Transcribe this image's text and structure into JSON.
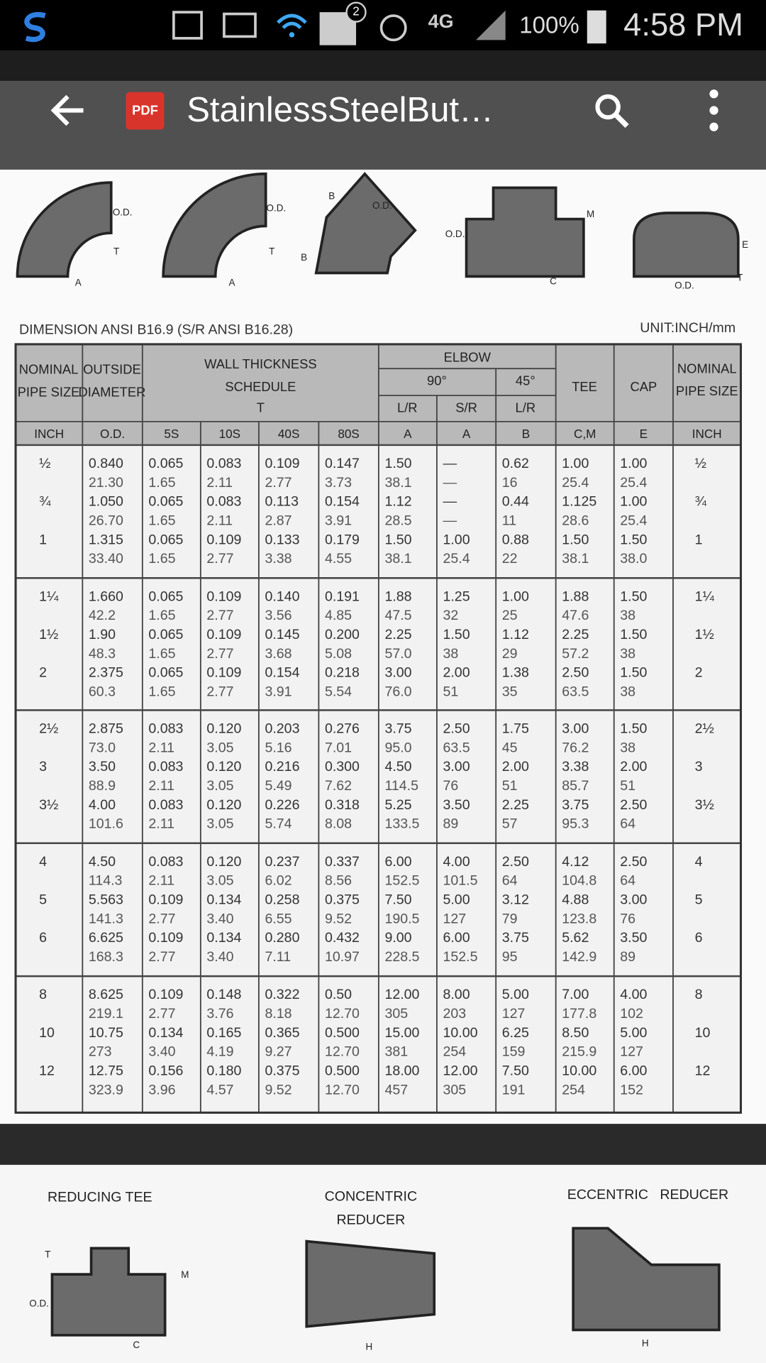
{
  "status_bar": {
    "notification_count": "2",
    "network": "4G",
    "battery": "100%",
    "time": "4:58 PM"
  },
  "toolbar": {
    "badge": "PDF",
    "title": "StainlessSteelBut…"
  },
  "top_figure_labels": [
    "O.D.",
    "T",
    "A",
    "O.D.",
    "T",
    "A",
    "B",
    "B",
    "O.D.",
    "O.D.",
    "M",
    "C",
    "E",
    "O.D.",
    "T"
  ],
  "document": {
    "caption": "DIMENSION ANSI B16.9 (S/R ANSI B16.28)",
    "unit": "UNIT:INCH/mm"
  },
  "table": {
    "header": {
      "nominal_left": [
        "NOMINAL",
        "PIPE SIZE"
      ],
      "outside": [
        "OUTSIDE",
        "DIAMETER"
      ],
      "wall": [
        "WALL THICKNESS",
        "SCHEDULE"
      ],
      "wall_sub": "T",
      "elbow": "ELBOW",
      "deg90": "90°",
      "deg45": "45°",
      "lr_90": "L/R",
      "sr_90": "S/R",
      "lr_45": "L/R",
      "tee": "TEE",
      "cap": "CAP",
      "nominal_right": [
        "NOMINAL",
        "PIPE SIZE"
      ],
      "units": [
        "INCH",
        "O.D.",
        "5S",
        "10S",
        "40S",
        "80S",
        "A",
        "A",
        "B",
        "C,M",
        "E",
        "INCH"
      ]
    },
    "groups": [
      [
        {
          "size": "½",
          "inch": [
            "0.840",
            "0.065",
            "0.083",
            "0.109",
            "0.147",
            "1.50",
            "—",
            "0.62",
            "1.00",
            "1.00"
          ],
          "mm": [
            "21.30",
            "1.65",
            "2.11",
            "2.77",
            "3.73",
            "38.1",
            "—",
            "16",
            "25.4",
            "25.4"
          ]
        },
        {
          "size": "¾",
          "inch": [
            "1.050",
            "0.065",
            "0.083",
            "0.113",
            "0.154",
            "1.12",
            "—",
            "0.44",
            "1.125",
            "1.00"
          ],
          "mm": [
            "26.70",
            "1.65",
            "2.11",
            "2.87",
            "3.91",
            "28.5",
            "—",
            "11",
            "28.6",
            "25.4"
          ]
        },
        {
          "size": "1",
          "inch": [
            "1.315",
            "0.065",
            "0.109",
            "0.133",
            "0.179",
            "1.50",
            "1.00",
            "0.88",
            "1.50",
            "1.50"
          ],
          "mm": [
            "33.40",
            "1.65",
            "2.77",
            "3.38",
            "4.55",
            "38.1",
            "25.4",
            "22",
            "38.1",
            "38.0"
          ]
        }
      ],
      [
        {
          "size": "1¼",
          "inch": [
            "1.660",
            "0.065",
            "0.109",
            "0.140",
            "0.191",
            "1.88",
            "1.25",
            "1.00",
            "1.88",
            "1.50"
          ],
          "mm": [
            "42.2",
            "1.65",
            "2.77",
            "3.56",
            "4.85",
            "47.5",
            "32",
            "25",
            "47.6",
            "38"
          ]
        },
        {
          "size": "1½",
          "inch": [
            "1.90",
            "0.065",
            "0.109",
            "0.145",
            "0.200",
            "2.25",
            "1.50",
            "1.12",
            "2.25",
            "1.50"
          ],
          "mm": [
            "48.3",
            "1.65",
            "2.77",
            "3.68",
            "5.08",
            "57.0",
            "38",
            "29",
            "57.2",
            "38"
          ]
        },
        {
          "size": "2",
          "inch": [
            "2.375",
            "0.065",
            "0.109",
            "0.154",
            "0.218",
            "3.00",
            "2.00",
            "1.38",
            "2.50",
            "1.50"
          ],
          "mm": [
            "60.3",
            "1.65",
            "2.77",
            "3.91",
            "5.54",
            "76.0",
            "51",
            "35",
            "63.5",
            "38"
          ]
        }
      ],
      [
        {
          "size": "2½",
          "inch": [
            "2.875",
            "0.083",
            "0.120",
            "0.203",
            "0.276",
            "3.75",
            "2.50",
            "1.75",
            "3.00",
            "1.50"
          ],
          "mm": [
            "73.0",
            "2.11",
            "3.05",
            "5.16",
            "7.01",
            "95.0",
            "63.5",
            "45",
            "76.2",
            "38"
          ]
        },
        {
          "size": "3",
          "inch": [
            "3.50",
            "0.083",
            "0.120",
            "0.216",
            "0.300",
            "4.50",
            "3.00",
            "2.00",
            "3.38",
            "2.00"
          ],
          "mm": [
            "88.9",
            "2.11",
            "3.05",
            "5.49",
            "7.62",
            "114.5",
            "76",
            "51",
            "85.7",
            "51"
          ]
        },
        {
          "size": "3½",
          "inch": [
            "4.00",
            "0.083",
            "0.120",
            "0.226",
            "0.318",
            "5.25",
            "3.50",
            "2.25",
            "3.75",
            "2.50"
          ],
          "mm": [
            "101.6",
            "2.11",
            "3.05",
            "5.74",
            "8.08",
            "133.5",
            "89",
            "57",
            "95.3",
            "64"
          ]
        }
      ],
      [
        {
          "size": "4",
          "inch": [
            "4.50",
            "0.083",
            "0.120",
            "0.237",
            "0.337",
            "6.00",
            "4.00",
            "2.50",
            "4.12",
            "2.50"
          ],
          "mm": [
            "114.3",
            "2.11",
            "3.05",
            "6.02",
            "8.56",
            "152.5",
            "101.5",
            "64",
            "104.8",
            "64"
          ]
        },
        {
          "size": "5",
          "inch": [
            "5.563",
            "0.109",
            "0.134",
            "0.258",
            "0.375",
            "7.50",
            "5.00",
            "3.12",
            "4.88",
            "3.00"
          ],
          "mm": [
            "141.3",
            "2.77",
            "3.40",
            "6.55",
            "9.52",
            "190.5",
            "127",
            "79",
            "123.8",
            "76"
          ]
        },
        {
          "size": "6",
          "inch": [
            "6.625",
            "0.109",
            "0.134",
            "0.280",
            "0.432",
            "9.00",
            "6.00",
            "3.75",
            "5.62",
            "3.50"
          ],
          "mm": [
            "168.3",
            "2.77",
            "3.40",
            "7.11",
            "10.97",
            "228.5",
            "152.5",
            "95",
            "142.9",
            "89"
          ]
        }
      ],
      [
        {
          "size": "8",
          "inch": [
            "8.625",
            "0.109",
            "0.148",
            "0.322",
            "0.50",
            "12.00",
            "8.00",
            "5.00",
            "7.00",
            "4.00"
          ],
          "mm": [
            "219.1",
            "2.77",
            "3.76",
            "8.18",
            "12.70",
            "305",
            "203",
            "127",
            "177.8",
            "102"
          ]
        },
        {
          "size": "10",
          "inch": [
            "10.75",
            "0.134",
            "0.165",
            "0.365",
            "0.500",
            "15.00",
            "10.00",
            "6.25",
            "8.50",
            "5.00"
          ],
          "mm": [
            "273",
            "3.40",
            "4.19",
            "9.27",
            "12.70",
            "381",
            "254",
            "159",
            "215.9",
            "127"
          ]
        },
        {
          "size": "12",
          "inch": [
            "12.75",
            "0.156",
            "0.180",
            "0.375",
            "0.500",
            "18.00",
            "12.00",
            "7.50",
            "10.00",
            "6.00"
          ],
          "mm": [
            "323.9",
            "3.96",
            "4.57",
            "9.52",
            "12.70",
            "457",
            "305",
            "191",
            "254",
            "152"
          ]
        }
      ]
    ]
  },
  "next_page": {
    "titles": [
      "REDUCING TEE",
      "CONCENTRIC",
      "REDUCER",
      "ECCENTRIC   REDUCER"
    ],
    "labels": [
      "T",
      "O.D.",
      "M",
      "C",
      "H",
      "H"
    ]
  }
}
